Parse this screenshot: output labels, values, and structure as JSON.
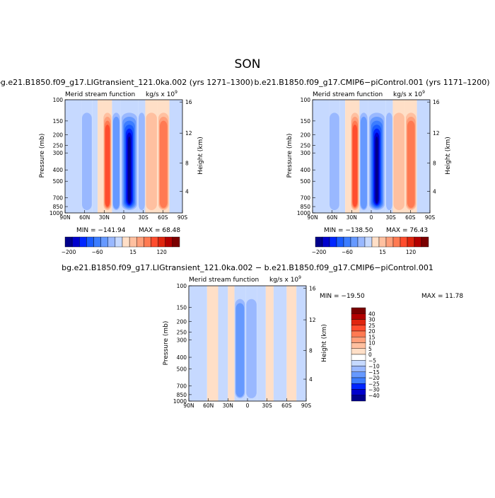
{
  "figure": {
    "season_title": "SON"
  },
  "chart_data": [
    {
      "type": "heatmap",
      "title": "bg.e21.B1850.f09_g17.LIGtransient_121.0ka.002 (yrs 1271–1300)",
      "subtitle_left": "Merid stream function",
      "units_text": "kg/s x 10",
      "units_exp": "9",
      "xlabel": "",
      "ylabel": "Pressure (mb)",
      "ylabel_right": "Height (km)",
      "x_ticks": [
        "90N",
        "60N",
        "30N",
        "0",
        "30S",
        "60S",
        "90S"
      ],
      "y_ticks": [
        "100",
        "150",
        "200",
        "250",
        "300",
        "400",
        "500",
        "700",
        "850",
        "1000"
      ],
      "height_ticks": [
        "16",
        "12",
        "8",
        "4"
      ],
      "min_text": "MIN = −141.94",
      "max_text": "MAX =  68.48",
      "colorbar_labels": [
        "−200",
        "−60",
        "15",
        "120"
      ],
      "cells": [
        {
          "x_from": -90,
          "x_to": -65,
          "level": -1
        },
        {
          "x_from": -65,
          "x_to": -48,
          "level": -2
        },
        {
          "x_from": -48,
          "x_to": -40,
          "level": -1
        },
        {
          "x_from": -40,
          "x_to": -32,
          "level": 1
        },
        {
          "x_from": -32,
          "x_to": -18,
          "level": 5
        },
        {
          "x_from": -18,
          "x_to": -5,
          "level": -3
        },
        {
          "x_from": -5,
          "x_to": 22,
          "level": -9
        },
        {
          "x_from": 22,
          "x_to": 33,
          "level": -2
        },
        {
          "x_from": 33,
          "x_to": 52,
          "level": 2
        },
        {
          "x_from": 52,
          "x_to": 70,
          "level": 4
        },
        {
          "x_from": 70,
          "x_to": 90,
          "level": -1
        }
      ]
    },
    {
      "type": "heatmap",
      "title": "b.e21.B1850.f09_g17.CMIP6−piControl.001 (yrs 1171–1200)",
      "subtitle_left": "Merid stream function",
      "units_text": "kg/s x 10",
      "units_exp": "9",
      "xlabel": "",
      "ylabel": "Pressure (mb)",
      "ylabel_right": "Height (km)",
      "x_ticks": [
        "90N",
        "60N",
        "30N",
        "0",
        "30S",
        "60S",
        "90S"
      ],
      "y_ticks": [
        "100",
        "150",
        "200",
        "250",
        "300",
        "400",
        "500",
        "700",
        "850",
        "1000"
      ],
      "height_ticks": [
        "16",
        "12",
        "8",
        "4"
      ],
      "min_text": "MIN = −138.50",
      "max_text": "MAX =  76.43",
      "colorbar_labels": [
        "−200",
        "−60",
        "15",
        "120"
      ],
      "cells": [
        {
          "x_from": -90,
          "x_to": -65,
          "level": -1
        },
        {
          "x_from": -65,
          "x_to": -48,
          "level": -2
        },
        {
          "x_from": -48,
          "x_to": -40,
          "level": -1
        },
        {
          "x_from": -40,
          "x_to": -32,
          "level": 1
        },
        {
          "x_from": -32,
          "x_to": -18,
          "level": 5
        },
        {
          "x_from": -18,
          "x_to": -5,
          "level": -3
        },
        {
          "x_from": -5,
          "x_to": 22,
          "level": -9
        },
        {
          "x_from": 22,
          "x_to": 33,
          "level": -2
        },
        {
          "x_from": 33,
          "x_to": 52,
          "level": 2
        },
        {
          "x_from": 52,
          "x_to": 70,
          "level": 4
        },
        {
          "x_from": 70,
          "x_to": 90,
          "level": -1
        }
      ]
    },
    {
      "type": "heatmap",
      "title": "bg.e21.B1850.f09_g17.LIGtransient_121.0ka.002 − b.e21.B1850.f09_g17.CMIP6−piControl.001",
      "subtitle_left": "Merid stream function",
      "units_text": "kg/s x 10",
      "units_exp": "9",
      "xlabel": "",
      "ylabel": "Pressure (mb)",
      "ylabel_right": "Height (km)",
      "x_ticks": [
        "90N",
        "60N",
        "30N",
        "0",
        "30S",
        "60S",
        "90S"
      ],
      "y_ticks": [
        "100",
        "150",
        "200",
        "250",
        "300",
        "400",
        "500",
        "700",
        "850",
        "1000"
      ],
      "height_ticks": [
        "16",
        "12",
        "8",
        "4"
      ],
      "min_text": "MIN = −19.50",
      "max_text": "MAX =  11.78",
      "colorbar_labels": [
        "40",
        "30",
        "25",
        "20",
        "15",
        "10",
        "5",
        "0",
        "−5",
        "−10",
        "−15",
        "−20",
        "−25",
        "−30",
        "−40"
      ],
      "cells": [
        {
          "x_from": -90,
          "x_to": -62,
          "level": -1
        },
        {
          "x_from": -62,
          "x_to": -45,
          "level": 1
        },
        {
          "x_from": -45,
          "x_to": -30,
          "level": -1
        },
        {
          "x_from": -30,
          "x_to": -20,
          "level": 1
        },
        {
          "x_from": -20,
          "x_to": -3,
          "level": -3
        },
        {
          "x_from": -3,
          "x_to": 15,
          "level": -2
        },
        {
          "x_from": 15,
          "x_to": 28,
          "level": -1
        },
        {
          "x_from": 28,
          "x_to": 40,
          "level": 1
        },
        {
          "x_from": 40,
          "x_to": 60,
          "level": -1
        },
        {
          "x_from": 60,
          "x_to": 75,
          "level": 1
        },
        {
          "x_from": 75,
          "x_to": 90,
          "level": -1
        }
      ]
    }
  ],
  "colors": {
    "diverging": [
      "#00008b",
      "#0000cd",
      "#0026ff",
      "#1a5cff",
      "#3c7dff",
      "#6699ff",
      "#99b8ff",
      "#c6d9ff",
      "#ffffff",
      "#ffdfc7",
      "#ffc0a0",
      "#ff9f7a",
      "#ff7a52",
      "#ff4d2e",
      "#e0250e",
      "#b30000",
      "#7a0000"
    ]
  }
}
